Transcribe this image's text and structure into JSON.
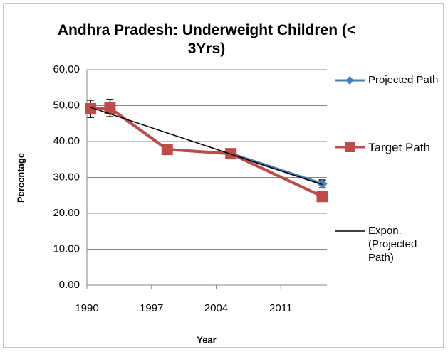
{
  "chart_data": {
    "type": "line",
    "title": "Andhra Pradesh: Underweight Children (< 3Yrs)",
    "xlabel": "Year",
    "ylabel": "Percentage",
    "xlim": [
      1990,
      2016
    ],
    "xticks": [
      1990,
      1997,
      2004,
      2011
    ],
    "ylim": [
      0,
      60
    ],
    "yticks": [
      {
        "value": 0,
        "label": "0.00"
      },
      {
        "value": 10,
        "label": "10.00"
      },
      {
        "value": 20,
        "label": "20.00"
      },
      {
        "value": 30,
        "label": "30.00"
      },
      {
        "value": 40,
        "label": "40.00"
      },
      {
        "value": 50,
        "label": "50.00"
      },
      {
        "value": 60,
        "label": "60.00"
      }
    ],
    "grid": true,
    "legend": "right",
    "series": [
      {
        "name": "Projected Path",
        "color": "#4a7ebb",
        "marker": "diamond",
        "x": [
          1990.4,
          1992.5,
          1998.7,
          2005.6,
          2015.5
        ],
        "values": [
          49.1,
          49.3,
          37.8,
          36.6,
          28.2
        ],
        "errors": [
          2.4,
          2.4,
          1.1,
          1.1,
          1.1
        ]
      },
      {
        "name": "Target Path",
        "color": "#be4b48",
        "marker": "square",
        "x": [
          1990.4,
          1992.5,
          1998.7,
          2005.6,
          2015.5
        ],
        "values": [
          49.1,
          49.3,
          37.8,
          36.6,
          24.7
        ]
      },
      {
        "name": "Expon. (Projected Path)",
        "color": "#000000",
        "marker": "none",
        "x": [
          1990.4,
          2015.5
        ],
        "values": [
          49.5,
          28.0
        ]
      }
    ]
  }
}
